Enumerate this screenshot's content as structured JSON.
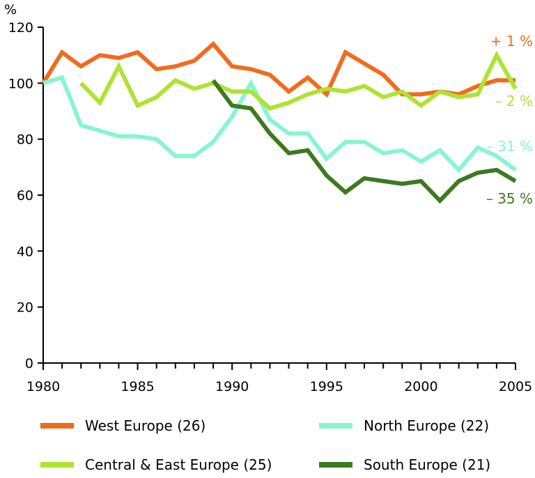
{
  "chart_data": {
    "type": "line",
    "y_unit": "%",
    "xlim": [
      1980,
      2005
    ],
    "ylim": [
      0,
      120
    ],
    "x_ticks": [
      1980,
      1985,
      1990,
      1995,
      2000,
      2005
    ],
    "y_ticks": [
      0,
      20,
      40,
      60,
      80,
      100,
      120
    ],
    "grid": false,
    "legend_position": "bottom",
    "series": [
      {
        "name": "West Europe (26)",
        "color": "#f26b1d",
        "end_label": "+ 1 %",
        "x": [
          1980,
          1981,
          1982,
          1983,
          1984,
          1985,
          1986,
          1987,
          1988,
          1989,
          1990,
          1991,
          1992,
          1993,
          1994,
          1995,
          1996,
          1997,
          1998,
          1999,
          2000,
          2001,
          2002,
          2003,
          2004,
          2005
        ],
        "y": [
          100,
          111,
          106,
          110,
          109,
          111,
          105,
          106,
          108,
          114,
          106,
          105,
          103,
          97,
          102,
          96,
          111,
          107,
          103,
          96,
          96,
          97,
          96,
          99,
          101,
          101
        ]
      },
      {
        "name": "North Europe (22)",
        "color": "#88f5d2",
        "end_label": "– 31 %",
        "x": [
          1980,
          1981,
          1982,
          1983,
          1984,
          1985,
          1986,
          1987,
          1988,
          1989,
          1990,
          1991,
          1992,
          1993,
          1994,
          1995,
          1996,
          1997,
          1998,
          1999,
          2000,
          2001,
          2002,
          2003,
          2004,
          2005
        ],
        "y": [
          100,
          102,
          85,
          83,
          81,
          81,
          80,
          74,
          74,
          79,
          88,
          100,
          87,
          82,
          82,
          73,
          79,
          79,
          75,
          76,
          72,
          76,
          69,
          77,
          74,
          69
        ]
      },
      {
        "name": "Central & East Europe (25)",
        "color": "#aee332",
        "end_label": "– 2 %",
        "x": [
          1982,
          1983,
          1984,
          1985,
          1986,
          1987,
          1988,
          1989,
          1990,
          1991,
          1992,
          1993,
          1994,
          1995,
          1996,
          1997,
          1998,
          1999,
          2000,
          2001,
          2002,
          2003,
          2004,
          2005
        ],
        "y": [
          100,
          93,
          106,
          92,
          95,
          101,
          98,
          100,
          97,
          97,
          91,
          93,
          96,
          98,
          97,
          99,
          95,
          97,
          92,
          97,
          95,
          96,
          110,
          98
        ]
      },
      {
        "name": "South Europe (21)",
        "color": "#3d7a1f",
        "end_label": "– 35 %",
        "x": [
          1989,
          1990,
          1991,
          1992,
          1993,
          1994,
          1995,
          1996,
          1997,
          1998,
          1999,
          2000,
          2001,
          2002,
          2003,
          2004,
          2005
        ],
        "y": [
          101,
          92,
          91,
          82,
          75,
          76,
          67,
          61,
          66,
          65,
          64,
          65,
          58,
          65,
          68,
          69,
          65
        ]
      }
    ]
  }
}
